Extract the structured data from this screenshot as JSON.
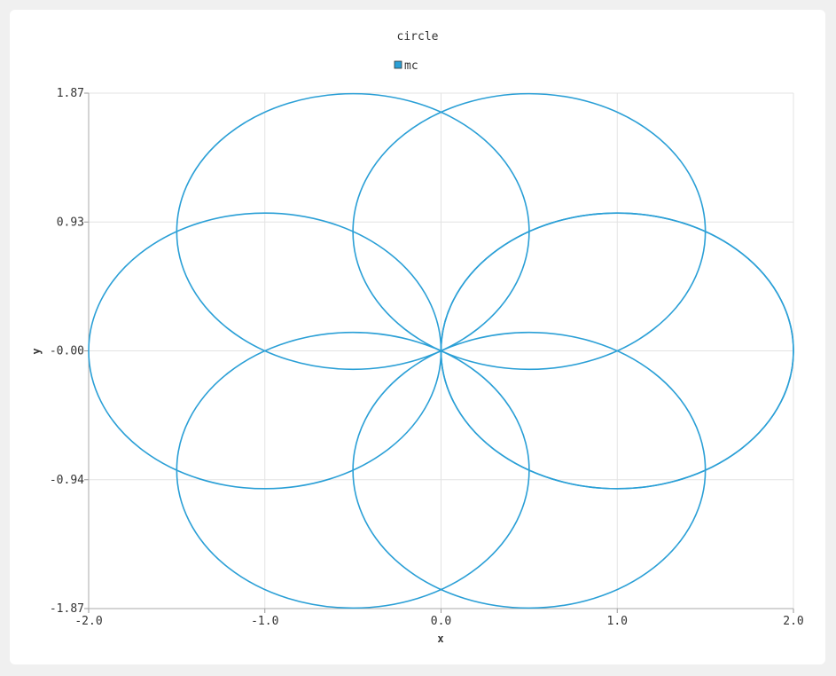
{
  "chart_data": {
    "type": "line",
    "title": "circle",
    "xlabel": "x",
    "ylabel": "y",
    "xlim": [
      -2.0,
      2.0
    ],
    "ylim": [
      -1.87,
      1.87
    ],
    "x_ticks": [
      "-2.0",
      "-1.0",
      "0.0",
      "1.0",
      "2.0"
    ],
    "y_ticks": [
      "1.87",
      "0.93",
      "-0.00",
      "-0.94",
      "-1.87"
    ],
    "grid": true,
    "legend_position": "top-center",
    "series": [
      {
        "name": "mc",
        "color": "#2a9fd6",
        "ellipses": [
          {
            "cx": 1.0,
            "cy": 0.0,
            "rx": 1.0,
            "ry": 1.0
          },
          {
            "cx": 0.5,
            "cy": 0.866,
            "rx": 1.0,
            "ry": 1.0
          },
          {
            "cx": -0.5,
            "cy": 0.866,
            "rx": 1.0,
            "ry": 1.0
          },
          {
            "cx": -1.0,
            "cy": 0.0,
            "rx": 1.0,
            "ry": 1.0
          },
          {
            "cx": -0.5,
            "cy": -0.866,
            "rx": 1.0,
            "ry": 1.0
          },
          {
            "cx": 0.5,
            "cy": -0.866,
            "rx": 1.0,
            "ry": 1.0
          },
          {
            "cx": 1.0,
            "cy": 0.0,
            "rx": 1.0,
            "ry": 1.0
          }
        ]
      }
    ]
  }
}
